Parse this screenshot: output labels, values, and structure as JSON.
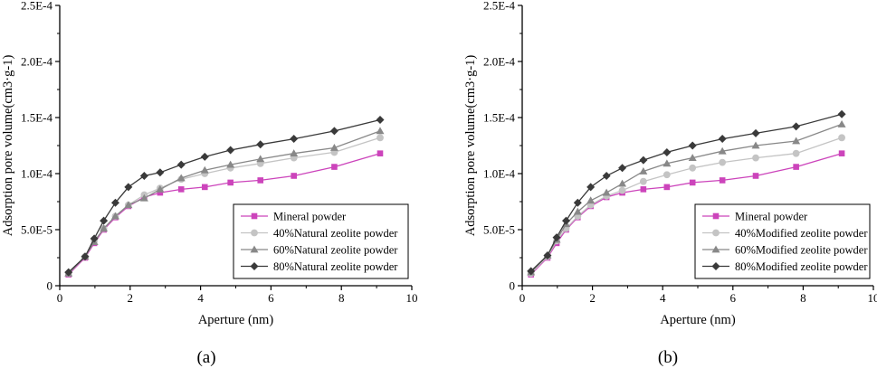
{
  "chart_data": [
    {
      "type": "line",
      "panel_label": "(a)",
      "xlabel": "Aperture (nm)",
      "ylabel": "Adsorption pore volume(cm3·g-1)",
      "xlim": [
        0,
        10
      ],
      "ylim": [
        0,
        0.00025
      ],
      "x_ticks": [
        {
          "v": 0,
          "label": "0"
        },
        {
          "v": 2,
          "label": "2"
        },
        {
          "v": 4,
          "label": "4"
        },
        {
          "v": 6,
          "label": "6"
        },
        {
          "v": 8,
          "label": "8"
        },
        {
          "v": 10,
          "label": "10"
        }
      ],
      "y_ticks": [
        {
          "v": 0,
          "label": "0"
        },
        {
          "v": 5e-05,
          "label": "5.0E-5"
        },
        {
          "v": 0.0001,
          "label": "1.0E-4"
        },
        {
          "v": 0.00015,
          "label": "1.5E-4"
        },
        {
          "v": 0.0002,
          "label": "2.0E-4"
        },
        {
          "v": 0.00025,
          "label": "2.5E-4"
        }
      ],
      "legend_position": "bottom-right",
      "series": [
        {
          "name": "Mineral powder",
          "color": "#cc44bb",
          "marker": "square",
          "x": [
            0.25,
            0.72,
            0.98,
            1.25,
            1.58,
            1.95,
            2.4,
            2.85,
            3.45,
            4.12,
            4.85,
            5.7,
            6.65,
            7.8,
            9.1
          ],
          "y": [
            1e-05,
            2.5e-05,
            3.8e-05,
            5e-05,
            6.1e-05,
            7.1e-05,
            7.9e-05,
            8.3e-05,
            8.6e-05,
            8.8e-05,
            9.2e-05,
            9.4e-05,
            9.8e-05,
            0.000106,
            0.000118
          ]
        },
        {
          "name": "40%Natural zeolite powder",
          "color": "#c4c4c4",
          "marker": "circle",
          "x": [
            0.25,
            0.72,
            0.98,
            1.25,
            1.58,
            1.95,
            2.4,
            2.85,
            3.45,
            4.12,
            4.85,
            5.7,
            6.65,
            7.8,
            9.1
          ],
          "y": [
            1.1e-05,
            2.6e-05,
            4e-05,
            5.1e-05,
            6.2e-05,
            7.2e-05,
            8.1e-05,
            8.7e-05,
            9.5e-05,
            0.0001,
            0.000105,
            0.000109,
            0.000114,
            0.000119,
            0.000132
          ]
        },
        {
          "name": "60%Natural zeolite powder",
          "color": "#888888",
          "marker": "triangle",
          "x": [
            0.25,
            0.72,
            0.98,
            1.25,
            1.58,
            1.95,
            2.4,
            2.85,
            3.45,
            4.12,
            4.85,
            5.7,
            6.65,
            7.8,
            9.1
          ],
          "y": [
            1.1e-05,
            2.6e-05,
            3.9e-05,
            5.1e-05,
            6.2e-05,
            7.2e-05,
            7.8e-05,
            8.6e-05,
            9.6e-05,
            0.000103,
            0.000108,
            0.000113,
            0.000118,
            0.000123,
            0.000138
          ]
        },
        {
          "name": "80%Natural zeolite powder",
          "color": "#3a3a3a",
          "marker": "diamond",
          "x": [
            0.25,
            0.72,
            0.98,
            1.25,
            1.58,
            1.95,
            2.4,
            2.85,
            3.45,
            4.12,
            4.85,
            5.7,
            6.65,
            7.8,
            9.1
          ],
          "y": [
            1.2e-05,
            2.6e-05,
            4.2e-05,
            5.8e-05,
            7.4e-05,
            8.8e-05,
            9.8e-05,
            0.000101,
            0.000108,
            0.000115,
            0.000121,
            0.000126,
            0.000131,
            0.000138,
            0.000148
          ]
        }
      ]
    },
    {
      "type": "line",
      "panel_label": "(b)",
      "xlabel": "Aperture (nm)",
      "ylabel": "Adsorption pore volume(cm3·g-1)",
      "xlim": [
        0,
        10
      ],
      "ylim": [
        0,
        0.00025
      ],
      "x_ticks": [
        {
          "v": 0,
          "label": "0"
        },
        {
          "v": 2,
          "label": "2"
        },
        {
          "v": 4,
          "label": "4"
        },
        {
          "v": 6,
          "label": "6"
        },
        {
          "v": 8,
          "label": "8"
        },
        {
          "v": 10,
          "label": "10"
        }
      ],
      "y_ticks": [
        {
          "v": 0,
          "label": "0"
        },
        {
          "v": 5e-05,
          "label": "5.0E-5"
        },
        {
          "v": 0.0001,
          "label": "1.0E-4"
        },
        {
          "v": 0.00015,
          "label": "1.5E-4"
        },
        {
          "v": 0.0002,
          "label": "2.0E-4"
        },
        {
          "v": 0.00025,
          "label": "2.5E-4"
        }
      ],
      "legend_position": "bottom-right",
      "series": [
        {
          "name": "Mineral powder",
          "color": "#cc44bb",
          "marker": "square",
          "x": [
            0.25,
            0.72,
            0.98,
            1.25,
            1.58,
            1.95,
            2.4,
            2.85,
            3.45,
            4.12,
            4.85,
            5.7,
            6.65,
            7.8,
            9.1
          ],
          "y": [
            1e-05,
            2.5e-05,
            3.8e-05,
            5e-05,
            6.1e-05,
            7.1e-05,
            7.9e-05,
            8.3e-05,
            8.6e-05,
            8.8e-05,
            9.2e-05,
            9.4e-05,
            9.8e-05,
            0.000106,
            0.000118
          ]
        },
        {
          "name": "40%Modified zeolite powder",
          "color": "#c4c4c4",
          "marker": "circle",
          "x": [
            0.25,
            0.72,
            0.98,
            1.25,
            1.58,
            1.95,
            2.4,
            2.85,
            3.45,
            4.12,
            4.85,
            5.7,
            6.65,
            7.8,
            9.1
          ],
          "y": [
            1.1e-05,
            2.6e-05,
            4e-05,
            5.1e-05,
            6.2e-05,
            7.2e-05,
            8e-05,
            8.5e-05,
            9.3e-05,
            9.9e-05,
            0.000105,
            0.00011,
            0.000114,
            0.000118,
            0.000132
          ]
        },
        {
          "name": "60%Modified zeolite powder",
          "color": "#888888",
          "marker": "triangle",
          "x": [
            0.25,
            0.72,
            0.98,
            1.25,
            1.58,
            1.95,
            2.4,
            2.85,
            3.45,
            4.12,
            4.85,
            5.7,
            6.65,
            7.8,
            9.1
          ],
          "y": [
            1.2e-05,
            2.7e-05,
            4.1e-05,
            5.5e-05,
            6.6e-05,
            7.6e-05,
            8.3e-05,
            9.1e-05,
            0.000102,
            0.000109,
            0.000114,
            0.00012,
            0.000125,
            0.000129,
            0.000144
          ]
        },
        {
          "name": "80%Modified zeolite powder",
          "color": "#3a3a3a",
          "marker": "diamond",
          "x": [
            0.25,
            0.72,
            0.98,
            1.25,
            1.58,
            1.95,
            2.4,
            2.85,
            3.45,
            4.12,
            4.85,
            5.7,
            6.65,
            7.8,
            9.1
          ],
          "y": [
            1.3e-05,
            2.7e-05,
            4.3e-05,
            5.8e-05,
            7.4e-05,
            8.8e-05,
            9.8e-05,
            0.000105,
            0.000112,
            0.000119,
            0.000125,
            0.000131,
            0.000136,
            0.000142,
            0.000153
          ]
        }
      ]
    }
  ]
}
